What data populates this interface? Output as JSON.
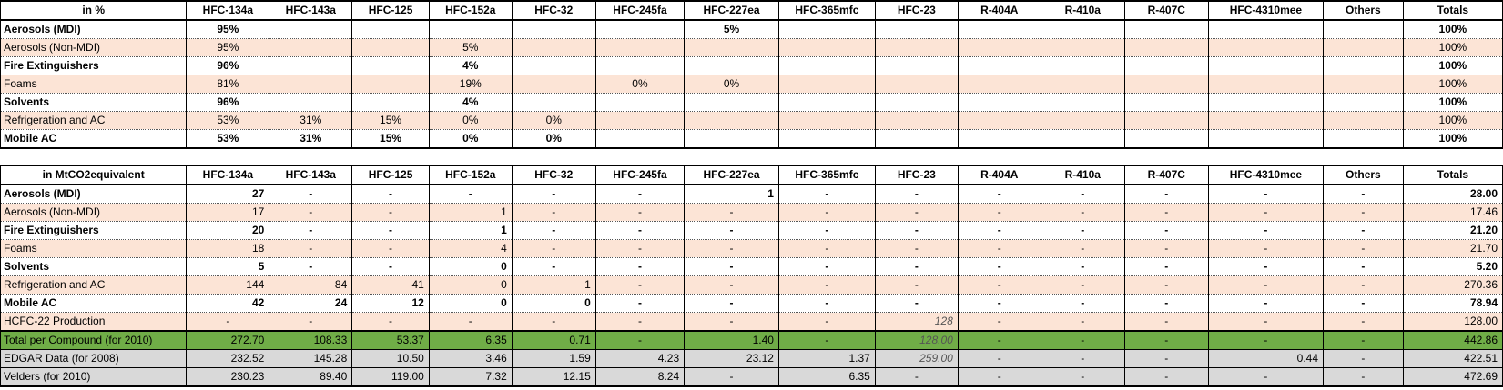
{
  "columns": [
    "HFC-134a",
    "HFC-143a",
    "HFC-125",
    "HFC-152a",
    "HFC-32",
    "HFC-245fa",
    "HFC-227ea",
    "HFC-365mfc",
    "HFC-23",
    "R-404A",
    "R-410a",
    "R-407C",
    "HFC-4310mee",
    "Others",
    "Totals"
  ],
  "percent_table": {
    "header": "in %",
    "rows": [
      {
        "label": "Aerosols (MDI)",
        "cells": [
          "95%",
          "",
          "",
          "",
          "",
          "",
          "5%",
          "",
          "",
          "",
          "",
          "",
          "",
          "",
          "100%"
        ]
      },
      {
        "label": "Aerosols (Non-MDI)",
        "cells": [
          "95%",
          "",
          "",
          "5%",
          "",
          "",
          "",
          "",
          "",
          "",
          "",
          "",
          "",
          "",
          "100%"
        ]
      },
      {
        "label": "Fire Extinguishers",
        "cells": [
          "96%",
          "",
          "",
          "4%",
          "",
          "",
          "",
          "",
          "",
          "",
          "",
          "",
          "",
          "",
          "100%"
        ]
      },
      {
        "label": "Foams",
        "cells": [
          "81%",
          "",
          "",
          "19%",
          "",
          "0%",
          "0%",
          "",
          "",
          "",
          "",
          "",
          "",
          "",
          "100%"
        ]
      },
      {
        "label": "Solvents",
        "cells": [
          "96%",
          "",
          "",
          "4%",
          "",
          "",
          "",
          "",
          "",
          "",
          "",
          "",
          "",
          "",
          "100%"
        ]
      },
      {
        "label": "Refrigeration and AC",
        "cells": [
          "53%",
          "31%",
          "15%",
          "0%",
          "0%",
          "",
          "",
          "",
          "",
          "",
          "",
          "",
          "",
          "",
          "100%"
        ]
      },
      {
        "label": "Mobile AC",
        "cells": [
          "53%",
          "31%",
          "15%",
          "0%",
          "0%",
          "",
          "",
          "",
          "",
          "",
          "",
          "",
          "",
          "",
          "100%"
        ]
      }
    ]
  },
  "co2_table": {
    "header": "in MtCO2equivalent",
    "rows": [
      {
        "label": "Aerosols (MDI)",
        "cells": [
          "27",
          "-",
          "-",
          "-",
          "-",
          "-",
          "1",
          "-",
          "-",
          "-",
          "-",
          "-",
          "-",
          "-",
          "28.00"
        ]
      },
      {
        "label": "Aerosols (Non-MDI)",
        "cells": [
          "17",
          "-",
          "-",
          "1",
          "-",
          "-",
          "-",
          "-",
          "-",
          "-",
          "-",
          "-",
          "-",
          "-",
          "17.46"
        ]
      },
      {
        "label": "Fire Extinguishers",
        "cells": [
          "20",
          "-",
          "-",
          "1",
          "-",
          "-",
          "-",
          "-",
          "-",
          "-",
          "-",
          "-",
          "-",
          "-",
          "21.20"
        ]
      },
      {
        "label": "Foams",
        "cells": [
          "18",
          "-",
          "-",
          "4",
          "-",
          "-",
          "-",
          "-",
          "-",
          "-",
          "-",
          "-",
          "-",
          "-",
          "21.70"
        ]
      },
      {
        "label": "Solvents",
        "cells": [
          "5",
          "-",
          "-",
          "0",
          "-",
          "-",
          "-",
          "-",
          "-",
          "-",
          "-",
          "-",
          "-",
          "-",
          "5.20"
        ]
      },
      {
        "label": "Refrigeration and AC",
        "cells": [
          "144",
          "84",
          "41",
          "0",
          "1",
          "-",
          "-",
          "-",
          "-",
          "-",
          "-",
          "-",
          "-",
          "-",
          "270.36"
        ]
      },
      {
        "label": "Mobile AC",
        "cells": [
          "42",
          "24",
          "12",
          "0",
          "0",
          "-",
          "-",
          "-",
          "-",
          "-",
          "-",
          "-",
          "-",
          "-",
          "78.94"
        ]
      },
      {
        "label": "HCFC-22 Production",
        "cells": [
          "-",
          "-",
          "-",
          "-",
          "-",
          "-",
          "-",
          "-",
          "128",
          "-",
          "-",
          "-",
          "-",
          "-",
          "128.00"
        ]
      },
      {
        "label": "Total per Compound (for 2010)",
        "cells": [
          "272.70",
          "108.33",
          "53.37",
          "6.35",
          "0.71",
          "-",
          "1.40",
          "-",
          "128.00",
          "-",
          "-",
          "-",
          "-",
          "-",
          "442.86"
        ]
      },
      {
        "label": "EDGAR Data (for 2008)",
        "cells": [
          "232.52",
          "145.28",
          "10.50",
          "3.46",
          "1.59",
          "4.23",
          "23.12",
          "1.37",
          "259.00",
          "-",
          "-",
          "-",
          "0.44",
          "-",
          "422.51"
        ]
      },
      {
        "label": "Velders (for 2010)",
        "cells": [
          "230.23",
          "89.40",
          "119.00",
          "7.32",
          "12.15",
          "8.24",
          "-",
          "6.35",
          "-",
          "-",
          "-",
          "-",
          "-",
          "-",
          "472.69"
        ]
      }
    ]
  }
}
